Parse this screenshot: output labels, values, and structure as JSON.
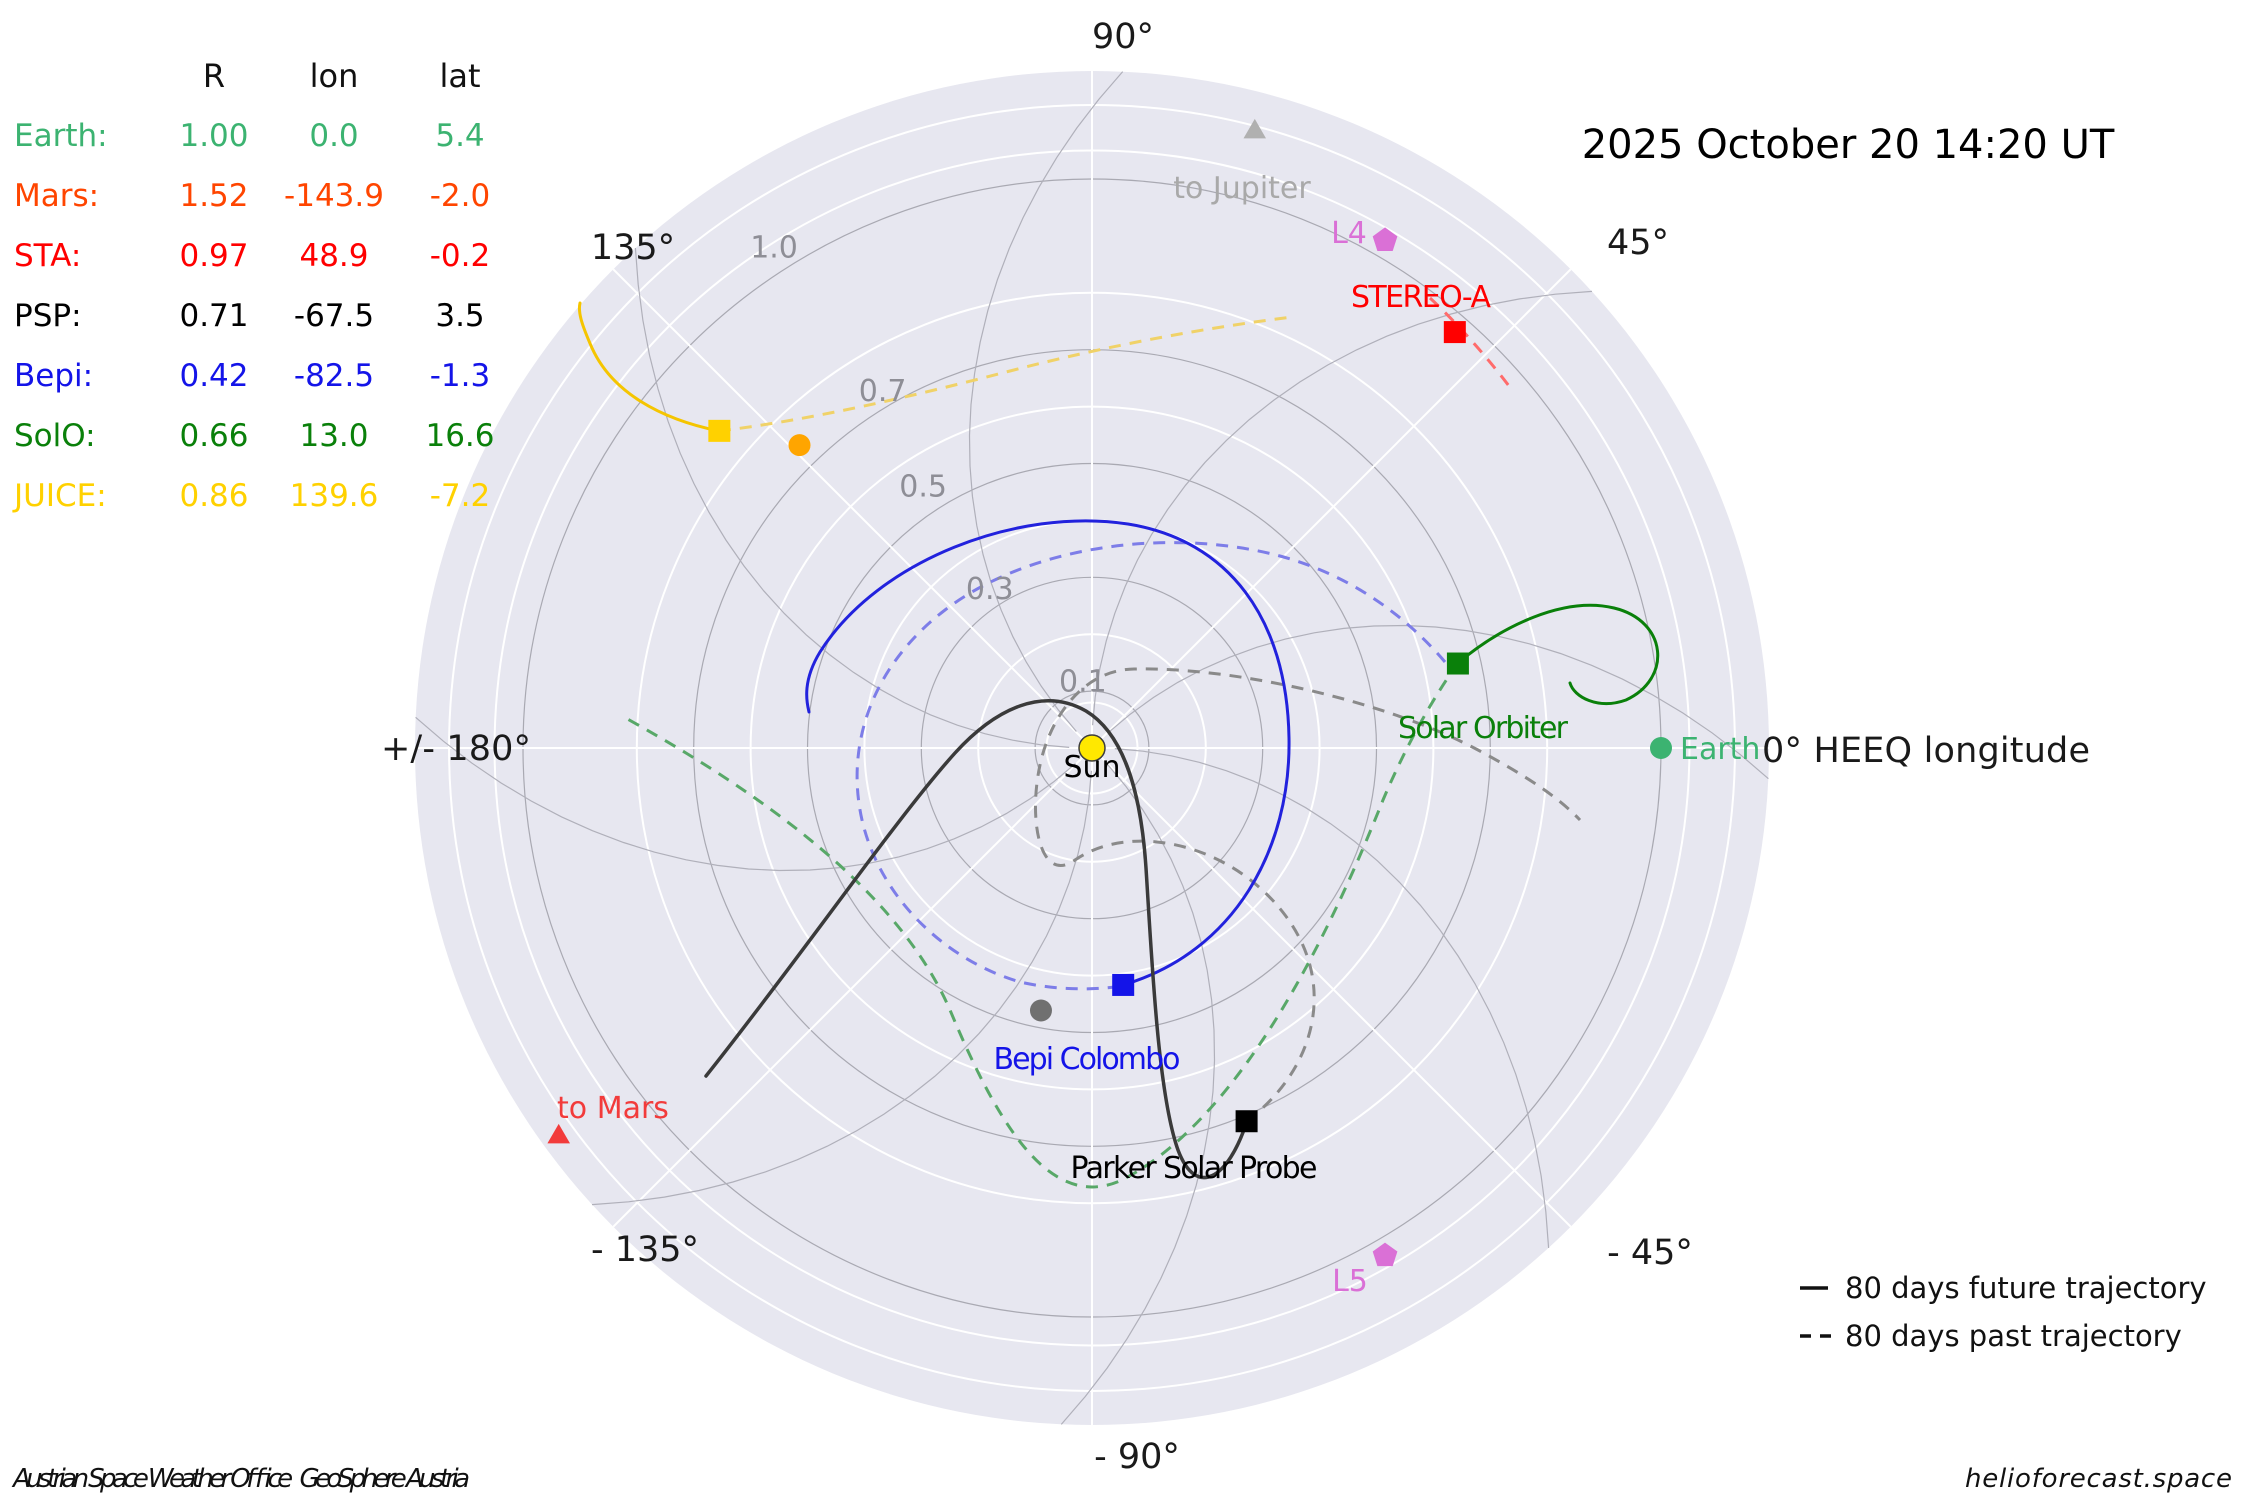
{
  "title": "2025 October 20  14:20 UT",
  "table": {
    "headers": {
      "r": "R",
      "lon": "lon",
      "lat": "lat"
    },
    "rows": [
      {
        "name": "Earth:",
        "r": "1.00",
        "lon": "0.0",
        "lat": "5.4",
        "color": "#3cb371"
      },
      {
        "name": "Mars:",
        "r": "1.52",
        "lon": "-143.9",
        "lat": "-2.0",
        "color": "#ff4500"
      },
      {
        "name": "STA:",
        "r": "0.97",
        "lon": "48.9",
        "lat": "-0.2",
        "color": "#ff0000"
      },
      {
        "name": "PSP:",
        "r": "0.71",
        "lon": "-67.5",
        "lat": "3.5",
        "color": "#000000"
      },
      {
        "name": "Bepi:",
        "r": "0.42",
        "lon": "-82.5",
        "lat": "-1.3",
        "color": "#1414e8"
      },
      {
        "name": "SolO:",
        "r": "0.66",
        "lon": "13.0",
        "lat": "16.6",
        "color": "#0a800a"
      },
      {
        "name": "JUICE:",
        "r": "0.86",
        "lon": "139.6",
        "lat": "-7.2",
        "color": "#ffd100"
      }
    ]
  },
  "angle_labels": {
    "p90": "90°",
    "p45": "45°",
    "zero": "0° HEEQ longitude",
    "m45": "- 45°",
    "m90": "- 90°",
    "m135": "- 135°",
    "pm180": "+/- 180°",
    "p135": "135°"
  },
  "legend": {
    "future": "80 days future trajectory",
    "past": "80 days past trajectory"
  },
  "footer": {
    "left": "Austrian Space Weather Office   GeoSphere Austria",
    "right": "helioforecast.space"
  },
  "colors": {
    "earth_green": "#3cb371",
    "solo_green": "#0a800a",
    "bepi_blue": "#1414e8",
    "psp_black": "#000000",
    "sta_red": "#ff0000",
    "juice_gold": "#ffd100",
    "orchid": "#da70d6",
    "tomars_red": "#f23b3b",
    "jupiter_gray": "#a9a9a9",
    "sun_yellow": "#ffe800",
    "disc_lavender": "#e7e7f0",
    "legend_black": "#111111"
  },
  "chart_data": {
    "type": "scatter",
    "projection": "polar",
    "r_unit": "AU",
    "lon_unit": "degrees HEEQ longitude",
    "title": "2025 October 20  14:20 UT",
    "grid": {
      "gray_rings": [
        0.1,
        0.3,
        0.5,
        0.7,
        1.0
      ],
      "white_rings": [
        0.08,
        0.2,
        0.4,
        0.6,
        0.8,
        1.05,
        1.13
      ],
      "spokes_deg": [
        0,
        45,
        90,
        135,
        180,
        225,
        270,
        315
      ],
      "r_tick_labels": [
        "0.1",
        "0.3",
        "0.5",
        "0.7",
        "1.0"
      ],
      "outer_r": 1.19
    },
    "bodies": [
      {
        "name": "Sun",
        "r": 0.0,
        "lon": 0.0,
        "marker": "circle",
        "color": "#ffe800",
        "label": "Sun"
      },
      {
        "name": "Earth",
        "r": 1.0,
        "lon": 0.0,
        "lat": 5.4,
        "marker": "circle",
        "color": "#3cb371",
        "label": "Earth"
      },
      {
        "name": "Venus",
        "r": 0.74,
        "lon": 134.0,
        "marker": "circle",
        "color": "#ffa500",
        "label": ""
      },
      {
        "name": "Mercury",
        "r": 0.47,
        "lon": -101.0,
        "marker": "circle",
        "color": "#707070",
        "label": ""
      },
      {
        "name": "STEREO-A",
        "r": 0.97,
        "lon": 48.9,
        "lat": -0.2,
        "marker": "square",
        "color": "#ff0000",
        "label": "STEREO-A"
      },
      {
        "name": "PSP",
        "r": 0.71,
        "lon": -67.5,
        "lat": 3.5,
        "marker": "square",
        "color": "#000000",
        "label": "Parker Solar Probe"
      },
      {
        "name": "Bepi",
        "r": 0.42,
        "lon": -82.5,
        "lat": -1.3,
        "marker": "square",
        "color": "#1414e8",
        "label": "Bepi Colombo"
      },
      {
        "name": "SolO",
        "r": 0.66,
        "lon": 13.0,
        "lat": 16.6,
        "marker": "square",
        "color": "#0a800a",
        "label": "Solar Orbiter"
      },
      {
        "name": "JUICE",
        "r": 0.86,
        "lon": 139.6,
        "lat": -7.2,
        "marker": "square",
        "color": "#ffd100",
        "label": ""
      },
      {
        "name": "L4",
        "r": 1.03,
        "lon": 60.0,
        "marker": "pentagon",
        "color": "#da70d6",
        "label": "L4"
      },
      {
        "name": "L5",
        "r": 1.03,
        "lon": -60.0,
        "marker": "pentagon",
        "color": "#da70d6",
        "label": "L5"
      },
      {
        "name": "to Mars",
        "r": 1.16,
        "lon": -143.9,
        "marker": "triangle",
        "color": "#f23b3b",
        "label": "to Mars"
      },
      {
        "name": "to Jupiter",
        "r": 1.12,
        "lon": 75.2,
        "marker": "triangle",
        "color": "#b0b0b0",
        "label": "to Jupiter"
      }
    ],
    "trajectories": [
      {
        "name": "psp_future",
        "style": "solid",
        "color": "#3a3a3a"
      },
      {
        "name": "psp_past",
        "style": "dashed",
        "color": "#8a8a8a"
      },
      {
        "name": "bepi_future",
        "style": "solid",
        "color": "#2222dd"
      },
      {
        "name": "bepi_past",
        "style": "dashed",
        "color": "#7d7de8"
      },
      {
        "name": "solo_future",
        "style": "solid",
        "color": "#0a800a"
      },
      {
        "name": "solo_past",
        "style": "dashed",
        "color": "#58a868"
      },
      {
        "name": "juice_future",
        "style": "solid",
        "color": "#f5c500"
      },
      {
        "name": "juice_past",
        "style": "dashed",
        "color": "#f0d268"
      },
      {
        "name": "sta_past",
        "style": "dashed",
        "color": "#ff6b6b"
      }
    ]
  }
}
